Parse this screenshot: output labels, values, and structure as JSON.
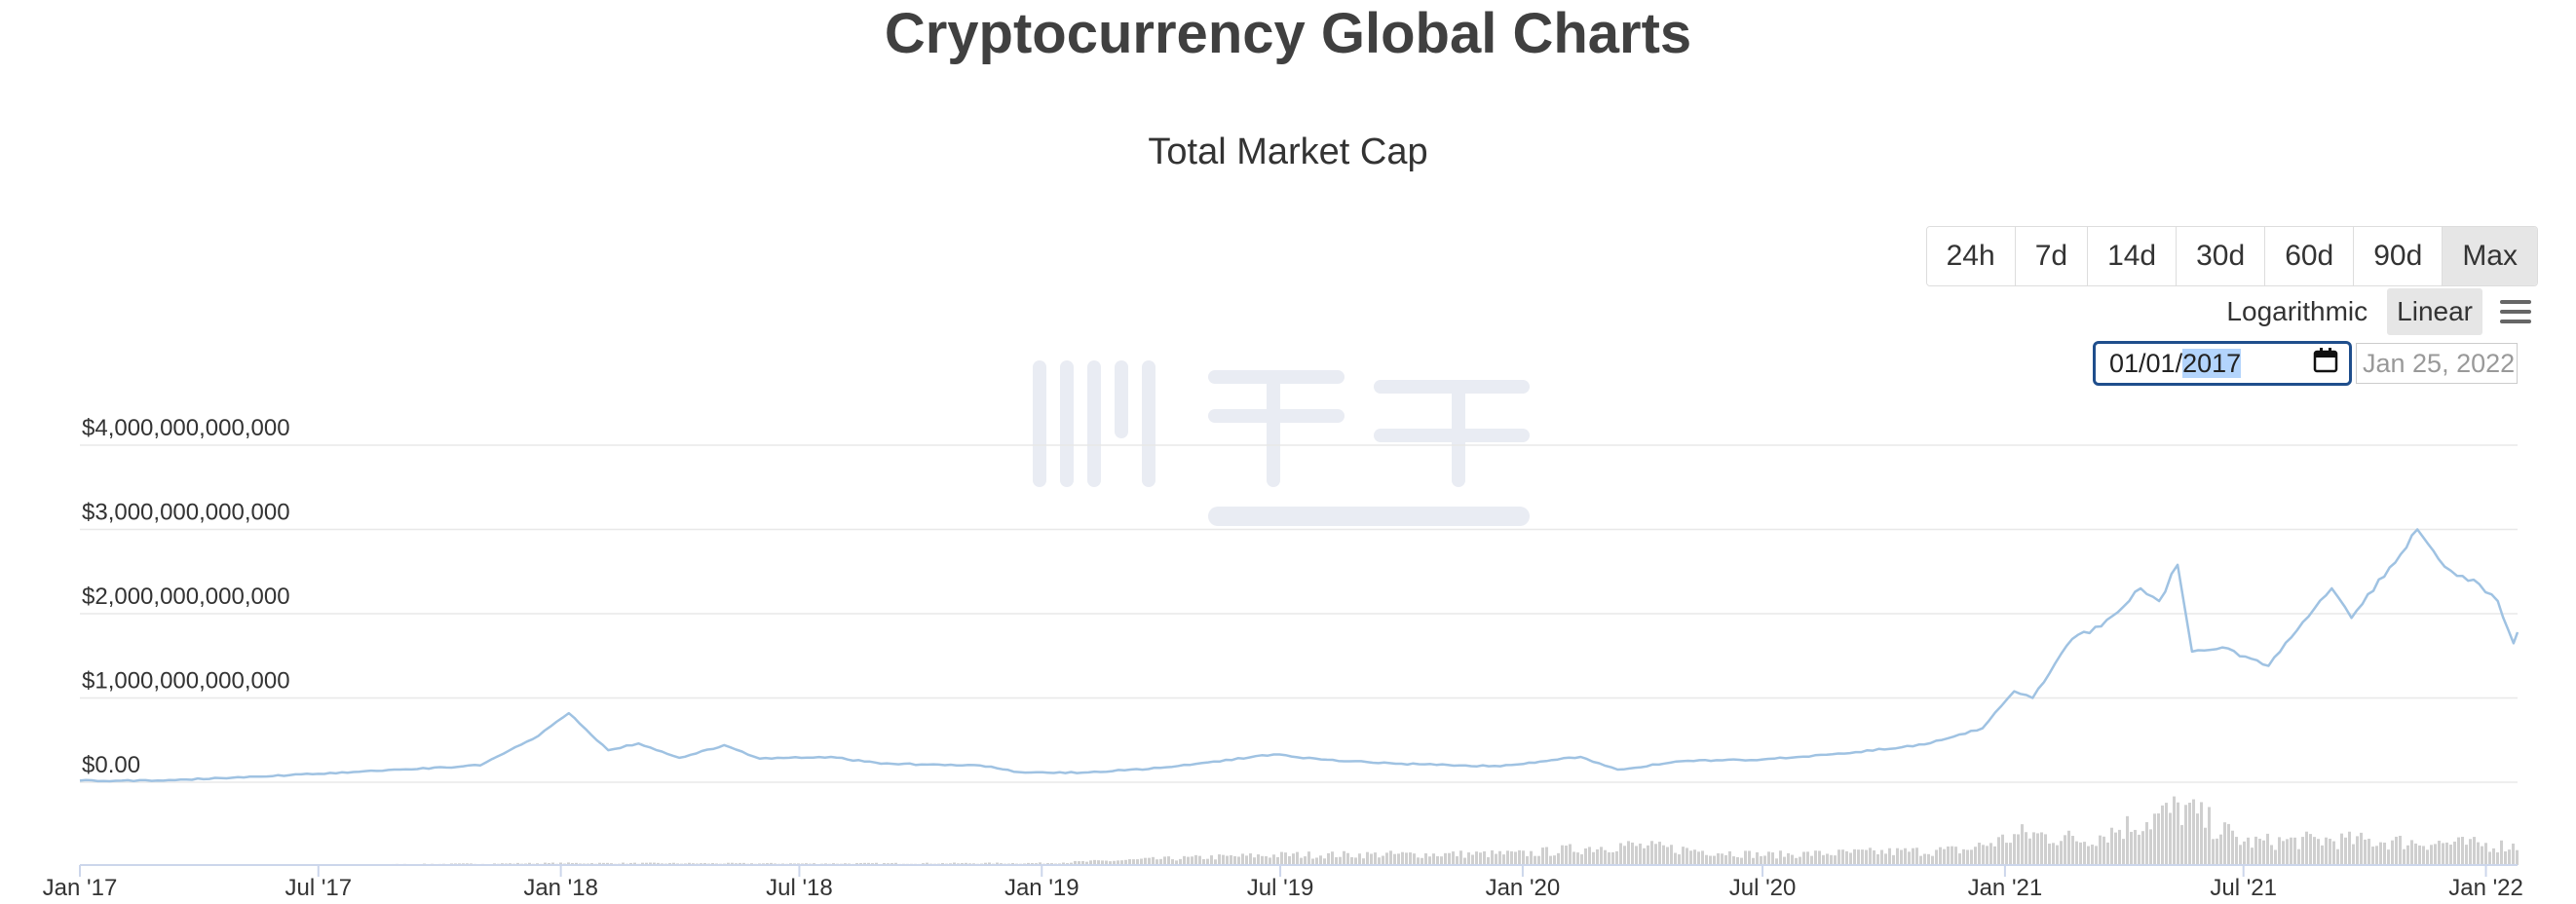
{
  "page": {
    "title": "Cryptocurrency Global Charts"
  },
  "range_selector": {
    "buttons": [
      "24h",
      "7d",
      "14d",
      "30d",
      "60d",
      "90d",
      "Max"
    ],
    "active": "Max"
  },
  "scale_toggle": {
    "logarithmic": "Logarithmic",
    "linear": "Linear",
    "active": "Linear",
    "menu_icon": "hamburger-menu-icon"
  },
  "date_range": {
    "from_parts": [
      "01/01/",
      "2017"
    ],
    "from_icon": "calendar-icon",
    "to": "Jan 25, 2022"
  },
  "watermark": {
    "logo_icon": "blockbeats-logo-icon"
  },
  "colors": {
    "line": "#9fc2e2",
    "volume": "#cfcfcf",
    "grid": "#e8e8e8",
    "axis": "#ccd6eb"
  },
  "chart_data": {
    "type": "line",
    "title": "Total Market Cap",
    "xlabel": "",
    "ylabel": "",
    "x_range": [
      "2017-01-01",
      "2022-01-25"
    ],
    "ylim": [
      0,
      4000000000000
    ],
    "grid": true,
    "y_tick_labels": [
      "$0.00",
      "$1,000,000,000,000",
      "$2,000,000,000,000",
      "$3,000,000,000,000",
      "$4,000,000,000,000"
    ],
    "y_tick_values": [
      0,
      1000000000000,
      2000000000000,
      3000000000000,
      4000000000000
    ],
    "x_tick_labels": [
      "Jan '17",
      "Jul '17",
      "Jan '18",
      "Jul '18",
      "Jan '19",
      "Jul '19",
      "Jan '20",
      "Jul '20",
      "Jan '21",
      "Jul '21",
      "Jan '22"
    ],
    "x_tick_dates": [
      "2017-01-01",
      "2017-07-01",
      "2018-01-01",
      "2018-07-01",
      "2019-01-01",
      "2019-07-01",
      "2020-01-01",
      "2020-07-01",
      "2021-01-01",
      "2021-07-01",
      "2022-01-01"
    ],
    "series": [
      {
        "kind": "market_cap",
        "x": [
          "2017-01-01",
          "2017-03-01",
          "2017-05-01",
          "2017-07-01",
          "2017-09-01",
          "2017-11-01",
          "2017-12-15",
          "2018-01-07",
          "2018-02-06",
          "2018-03-01",
          "2018-04-01",
          "2018-05-05",
          "2018-06-01",
          "2018-07-25",
          "2018-09-01",
          "2018-11-15",
          "2018-12-15",
          "2019-02-01",
          "2019-04-01",
          "2019-06-26",
          "2019-08-01",
          "2019-10-01",
          "2019-12-15",
          "2020-02-14",
          "2020-03-13",
          "2020-05-01",
          "2020-07-01",
          "2020-09-01",
          "2020-11-01",
          "2020-12-15",
          "2021-01-08",
          "2021-01-22",
          "2021-02-21",
          "2021-03-15",
          "2021-04-14",
          "2021-04-28",
          "2021-05-12",
          "2021-05-23",
          "2021-06-15",
          "2021-07-20",
          "2021-08-15",
          "2021-09-06",
          "2021-09-21",
          "2021-10-20",
          "2021-11-10",
          "2021-11-26",
          "2021-12-10",
          "2021-12-27",
          "2022-01-10",
          "2022-01-22",
          "2022-01-25"
        ],
        "values": [
          18000000000,
          20000000000,
          60000000000,
          100000000000,
          150000000000,
          200000000000,
          550000000000,
          820000000000,
          380000000000,
          460000000000,
          290000000000,
          440000000000,
          280000000000,
          300000000000,
          220000000000,
          200000000000,
          120000000000,
          115000000000,
          170000000000,
          330000000000,
          270000000000,
          220000000000,
          190000000000,
          300000000000,
          150000000000,
          250000000000,
          270000000000,
          340000000000,
          450000000000,
          640000000000,
          1080000000000,
          1000000000000,
          1700000000000,
          1850000000000,
          2300000000000,
          2150000000000,
          2580000000000,
          1550000000000,
          1600000000000,
          1380000000000,
          1900000000000,
          2300000000000,
          1950000000000,
          2550000000000,
          3000000000000,
          2650000000000,
          2450000000000,
          2350000000000,
          2150000000000,
          1650000000000,
          1780000000000
        ]
      },
      {
        "kind": "volume",
        "x": [
          "2017-01-01",
          "2017-07-01",
          "2018-01-01",
          "2018-07-01",
          "2019-01-01",
          "2019-05-01",
          "2019-07-01",
          "2020-01-01",
          "2020-03-13",
          "2020-07-01",
          "2020-12-01",
          "2021-01-15",
          "2021-03-01",
          "2021-05-15",
          "2021-07-01",
          "2021-09-01",
          "2021-11-15",
          "2022-01-25"
        ],
        "values": [
          1000000000,
          3000000000,
          15000000000,
          12000000000,
          15000000000,
          60000000000,
          80000000000,
          90000000000,
          160000000000,
          80000000000,
          120000000000,
          250000000000,
          200000000000,
          450000000000,
          180000000000,
          200000000000,
          180000000000,
          150000000000
        ]
      }
    ]
  }
}
